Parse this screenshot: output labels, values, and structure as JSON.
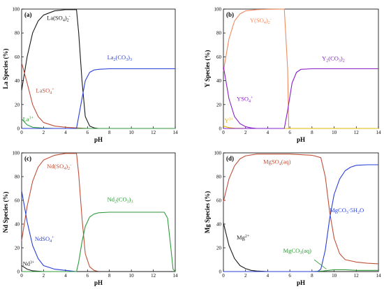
{
  "colors": {
    "black": "#1a1a1a",
    "red": "#c0503a",
    "blue": "#2a3fd8",
    "green": "#2f9a3a",
    "orange": "#f08a5e",
    "purple": "#8a1fc8",
    "yellow": "#e6b800"
  },
  "chart_data": [
    {
      "panel": "(a)",
      "type": "line",
      "xlabel": "pH",
      "ylabel": "La Species (%)",
      "xlim": [
        0,
        14
      ],
      "ylim": [
        0,
        100
      ],
      "xticks": [
        0,
        2,
        4,
        6,
        8,
        10,
        12,
        14
      ],
      "yticks": [
        0,
        20,
        40,
        60,
        80,
        100
      ],
      "series": [
        {
          "name": "La(SO4)2-",
          "color": "black",
          "x": [
            0,
            0.5,
            1,
            1.5,
            2,
            3,
            4,
            5,
            5.2,
            5.5,
            5.8,
            6.2,
            6.6,
            7,
            14
          ],
          "y": [
            32,
            60,
            80,
            90,
            95,
            98.5,
            99.5,
            99.5,
            80,
            40,
            10,
            2,
            0.5,
            0,
            0
          ]
        },
        {
          "name": "LaSO4+",
          "color": "red",
          "x": [
            0,
            0.5,
            1,
            1.5,
            2,
            3,
            4,
            5,
            6,
            14
          ],
          "y": [
            55,
            38,
            20,
            10,
            5,
            2,
            1,
            0.5,
            0,
            0
          ]
        },
        {
          "name": "La3+",
          "color": "green",
          "x": [
            0,
            0.5,
            1,
            2,
            3,
            14
          ],
          "y": [
            8,
            3,
            1,
            0.3,
            0,
            0
          ]
        },
        {
          "name": "La2(CO3)3",
          "color": "blue",
          "x": [
            0,
            5,
            5.2,
            5.5,
            5.8,
            6.2,
            6.6,
            7,
            8,
            14
          ],
          "y": [
            0,
            0,
            10,
            25,
            40,
            47,
            49,
            49.5,
            50,
            50
          ]
        }
      ],
      "annotations": [
        {
          "text": "La(SO",
          "sub": "4",
          "text2": ")",
          "sub2": "2",
          "sup": "-",
          "color": "black",
          "at": [
            2.3,
            91
          ]
        },
        {
          "text": "LaSO",
          "sub": "4",
          "sup": "+",
          "color": "red",
          "at": [
            1.3,
            30
          ]
        },
        {
          "text": "La",
          "sup": "3+",
          "color": "green",
          "at": [
            0.1,
            6
          ]
        },
        {
          "text": "La",
          "sub": "2",
          "text2": "(CO",
          "sub2": "3",
          "text3": ")",
          "sub3": "3",
          "color": "blue",
          "at": [
            7.8,
            58
          ]
        }
      ]
    },
    {
      "panel": "(b)",
      "type": "line",
      "xlabel": "pH",
      "ylabel": "Y Species (%)",
      "xlim": [
        0,
        14
      ],
      "ylim": [
        0,
        100
      ],
      "xticks": [
        0,
        2,
        4,
        6,
        8,
        10,
        12,
        14
      ],
      "yticks": [
        0,
        20,
        40,
        60,
        80,
        100
      ],
      "series": [
        {
          "name": "Y(SO4)2-",
          "color": "orange",
          "x": [
            0,
            0.5,
            1,
            1.5,
            2,
            3,
            4,
            5.5,
            5.8,
            5.9,
            14
          ],
          "y": [
            48,
            75,
            90,
            96,
            98.5,
            99.5,
            99.8,
            100,
            50,
            0,
            0
          ]
        },
        {
          "name": "YSO4+",
          "color": "purple",
          "x": [
            0,
            0.5,
            1,
            1.5,
            2,
            2.5,
            3,
            4,
            14
          ],
          "y": [
            52,
            25,
            10,
            4,
            1.5,
            0.5,
            0,
            0,
            0
          ]
        },
        {
          "name": "Y3+",
          "color": "yellow",
          "x": [
            0,
            0.5,
            1,
            2,
            14
          ],
          "y": [
            2,
            0.7,
            0.2,
            0,
            0
          ]
        },
        {
          "name": "Y2(CO3)2",
          "color": "purple",
          "x": [
            0,
            5.5,
            5.8,
            6.2,
            6.6,
            7,
            8,
            14
          ],
          "y": [
            0,
            0,
            15,
            38,
            47,
            49.5,
            50,
            50
          ]
        }
      ],
      "annotations": [
        {
          "text": "Y(SO",
          "sub": "4",
          "text2": ")",
          "sub2": "2",
          "sup": "-",
          "color": "orange",
          "at": [
            2.4,
            89
          ]
        },
        {
          "text": "YSO",
          "sub": "4",
          "sup": "+",
          "color": "purple",
          "at": [
            1.2,
            23
          ]
        },
        {
          "text": "Y",
          "sup": "3+",
          "color": "yellow",
          "at": [
            0.1,
            5
          ]
        },
        {
          "text": "Y",
          "sub": "2",
          "text2": "(CO",
          "sub2": "3",
          "text3": ")",
          "sub3": "2",
          "color": "purple",
          "at": [
            8.9,
            57
          ]
        }
      ]
    },
    {
      "panel": "(c)",
      "type": "line",
      "xlabel": "pH",
      "ylabel": "Nd Species (%)",
      "xlim": [
        0,
        14
      ],
      "ylim": [
        0,
        100
      ],
      "xticks": [
        0,
        2,
        4,
        6,
        8,
        10,
        12,
        14
      ],
      "yticks": [
        0,
        20,
        40,
        60,
        80,
        100
      ],
      "series": [
        {
          "name": "Nd(SO4)2-",
          "color": "red",
          "x": [
            0,
            0.5,
            1,
            1.5,
            2,
            3,
            4,
            5,
            5.2,
            5.5,
            5.8,
            6.2,
            6.6,
            7,
            14
          ],
          "y": [
            26,
            55,
            76,
            88,
            94,
            98,
            99.5,
            99.5,
            82,
            45,
            15,
            4,
            1,
            0,
            0
          ]
        },
        {
          "name": "NdSO4+",
          "color": "blue",
          "x": [
            0,
            0.5,
            1,
            1.5,
            2,
            3,
            4,
            5,
            14
          ],
          "y": [
            68,
            42,
            22,
            11,
            5,
            2,
            1,
            0,
            0
          ]
        },
        {
          "name": "Nd3+",
          "color": "black",
          "x": [
            0,
            0.5,
            1,
            2,
            14
          ],
          "y": [
            5,
            2,
            0.6,
            0,
            0
          ]
        },
        {
          "name": "Nd2(CO3)3",
          "color": "green",
          "x": [
            0,
            5,
            5.2,
            5.5,
            5.8,
            6.2,
            6.6,
            7,
            8,
            13,
            13.3,
            13.6,
            13.8,
            14
          ],
          "y": [
            0,
            0,
            8,
            25,
            38,
            46,
            48.5,
            49.5,
            50,
            50,
            45,
            20,
            2,
            0
          ]
        }
      ],
      "annotations": [
        {
          "text": "Nd(SO",
          "sub": "4",
          "text2": ")",
          "sub2": "2",
          "sup": "-",
          "color": "red",
          "at": [
            2.3,
            87
          ]
        },
        {
          "text": "NdSO",
          "sub": "4",
          "sup": "+",
          "color": "blue",
          "at": [
            1.2,
            26
          ]
        },
        {
          "text": "Nd",
          "sup": "3+",
          "color": "black",
          "at": [
            0.1,
            5
          ]
        },
        {
          "text": "Nd",
          "sub": "2",
          "text2": "(CO",
          "sub2": "3",
          "text3": ")",
          "sub3": "3",
          "color": "green",
          "at": [
            7.8,
            59
          ]
        }
      ]
    },
    {
      "panel": "(d)",
      "type": "line",
      "xlabel": "pH",
      "ylabel": "Mg Species (%)",
      "xlim": [
        0,
        14
      ],
      "ylim": [
        0,
        100
      ],
      "xticks": [
        0,
        2,
        4,
        6,
        8,
        10,
        12,
        14
      ],
      "yticks": [
        0,
        20,
        40,
        60,
        80,
        100
      ],
      "series": [
        {
          "name": "MgSO4(aq)",
          "color": "red",
          "x": [
            0,
            0.5,
            1,
            1.5,
            2,
            3,
            4,
            6,
            8,
            8.8,
            9.2,
            9.6,
            10,
            10.5,
            11,
            12,
            13,
            14
          ],
          "y": [
            59,
            78,
            89,
            95,
            97.5,
            99,
            99,
            99,
            98,
            96,
            80,
            50,
            28,
            15,
            10,
            8,
            7,
            6.5
          ]
        },
        {
          "name": "Mg2+",
          "color": "black",
          "x": [
            0,
            0.5,
            1,
            1.5,
            2,
            2.5,
            3,
            4,
            14
          ],
          "y": [
            41,
            22,
            11,
            5,
            2.5,
            1,
            0.5,
            0,
            0
          ]
        },
        {
          "name": "MgCO3(aq)",
          "color": "green",
          "x": [
            0,
            8,
            9,
            9.5,
            10,
            11,
            12,
            14
          ],
          "y": [
            0,
            0,
            0.5,
            1,
            1.5,
            1.5,
            1,
            1
          ]
        },
        {
          "name": "MgCO3·5H2O",
          "color": "blue",
          "x": [
            0,
            8.5,
            8.8,
            9.2,
            9.6,
            10,
            10.5,
            11,
            11.5,
            12,
            13,
            14
          ],
          "y": [
            0,
            0,
            2,
            18,
            45,
            65,
            78,
            85,
            88,
            89.5,
            90,
            90
          ]
        }
      ],
      "annotations": [
        {
          "text": "MgSO",
          "sub": "4",
          "text2": "(aq)",
          "color": "red",
          "at": [
            3.6,
            91
          ]
        },
        {
          "text": "Mg",
          "sup": "2+",
          "color": "black",
          "at": [
            1.2,
            27
          ]
        },
        {
          "text": "MgCO",
          "sub": "3",
          "text2": "(aq)",
          "color": "green",
          "at": [
            5.4,
            16
          ]
        },
        {
          "text": "MgCO",
          "sub": "3",
          "text2": "·5H",
          "sub2": "2",
          "text3": "O",
          "color": "blue",
          "at": [
            9.6,
            50
          ]
        }
      ]
    }
  ]
}
